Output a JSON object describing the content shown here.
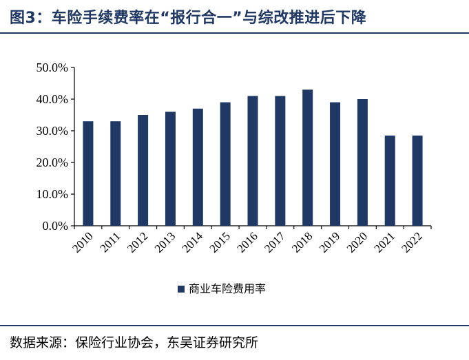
{
  "figure": {
    "title": "图3：车险手续费率在“报行合一”与综改推进后下降",
    "source": "数据来源：保险行业协会，东吴证券研究所"
  },
  "colors": {
    "bar": "#1f3864",
    "axis": "#000000",
    "title": "#1f3864"
  },
  "chart_data": {
    "type": "bar",
    "categories": [
      "2010",
      "2011",
      "2012",
      "2013",
      "2014",
      "2015",
      "2016",
      "2017",
      "2018",
      "2019",
      "2020",
      "2021",
      "2022"
    ],
    "series": [
      {
        "name": "商业车险费用率",
        "values": [
          33.0,
          33.0,
          35.0,
          36.0,
          37.0,
          39.0,
          41.0,
          41.0,
          43.0,
          39.0,
          40.0,
          28.5,
          28.5
        ]
      }
    ],
    "y_ticks": [
      "0.0%",
      "10.0%",
      "20.0%",
      "30.0%",
      "40.0%",
      "50.0%"
    ],
    "ylim": [
      0,
      50
    ],
    "grid": false,
    "legend": "bottom-center"
  }
}
